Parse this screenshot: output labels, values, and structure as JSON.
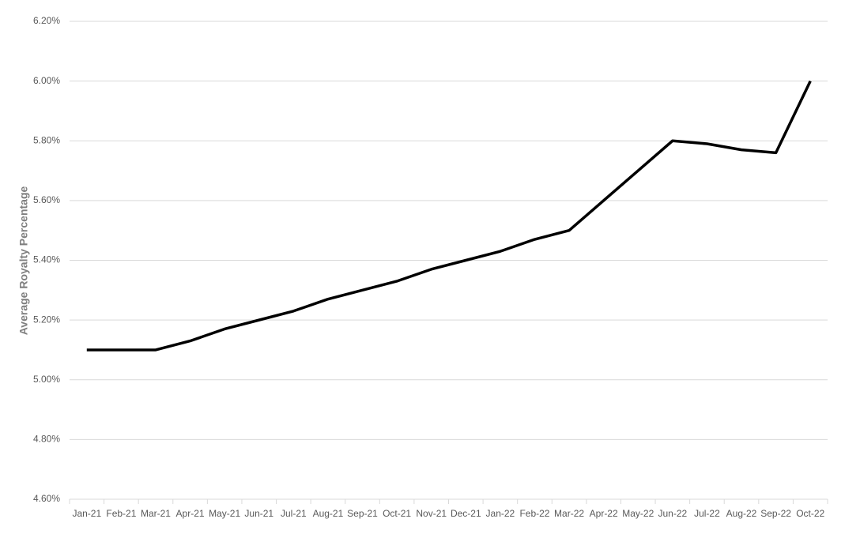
{
  "chart_data": {
    "type": "line",
    "y_label": "Average Royalty Percentage",
    "categories": [
      "Jan-21",
      "Feb-21",
      "Mar-21",
      "Apr-21",
      "May-21",
      "Jun-21",
      "Jul-21",
      "Aug-21",
      "Sep-21",
      "Oct-21",
      "Nov-21",
      "Dec-21",
      "Jan-22",
      "Feb-22",
      "Mar-22",
      "Apr-22",
      "May-22",
      "Jun-22",
      "Jul-22",
      "Aug-22",
      "Sep-22",
      "Oct-22"
    ],
    "series": [
      {
        "color": "#000000",
        "values": [
          5.1,
          5.1,
          5.1,
          5.13,
          5.17,
          5.2,
          5.23,
          5.27,
          5.3,
          5.33,
          5.37,
          5.4,
          5.43,
          5.47,
          5.5,
          5.6,
          5.7,
          5.8,
          5.79,
          5.77,
          5.76,
          6.0
        ]
      }
    ],
    "ylim": [
      4.6,
      6.2
    ],
    "yticks": [
      {
        "value": 4.6,
        "label": "4.60%"
      },
      {
        "value": 4.8,
        "label": "4.80%"
      },
      {
        "value": 5.0,
        "label": "5.00%"
      },
      {
        "value": 5.2,
        "label": "5.20%"
      },
      {
        "value": 5.4,
        "label": "5.40%"
      },
      {
        "value": 5.6,
        "label": "5.60%"
      },
      {
        "value": 5.8,
        "label": "5.80%"
      },
      {
        "value": 6.0,
        "label": "6.00%"
      },
      {
        "value": 6.2,
        "label": "6.20%"
      }
    ],
    "grid": true
  }
}
